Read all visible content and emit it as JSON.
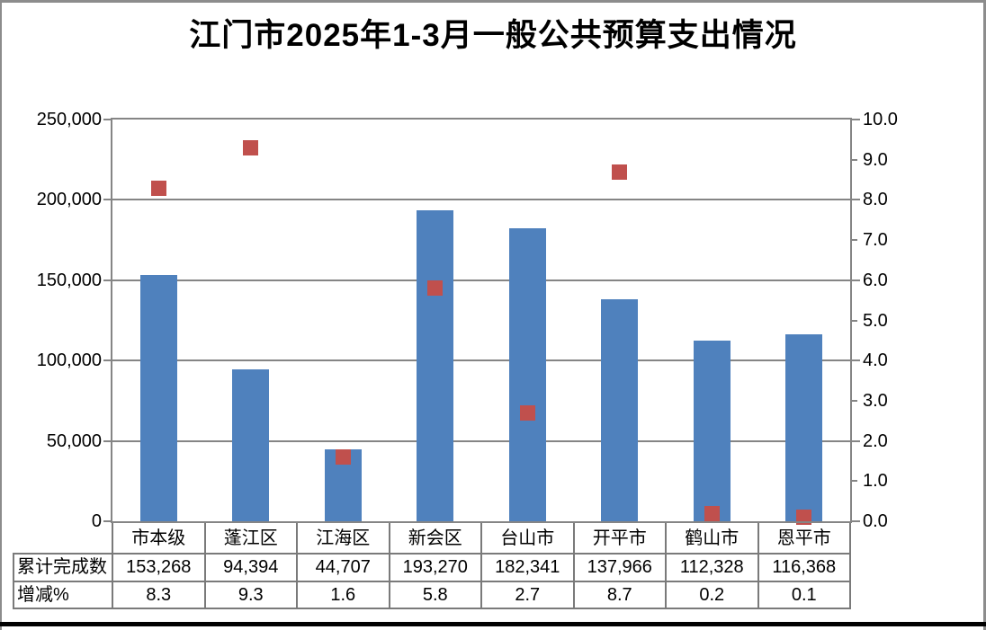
{
  "chart_data": {
    "type": "combo-bar-scatter",
    "title": "江门市2025年1-3月一般公共预算支出情况",
    "categories": [
      "市本级",
      "蓬江区",
      "江海区",
      "新会区",
      "台山市",
      "开平市",
      "鹤山市",
      "恩平市"
    ],
    "series": [
      {
        "name": "累计完成数",
        "type": "bar",
        "axis": "left",
        "color": "#4F81BD",
        "values": [
          153268,
          94394,
          44707,
          193270,
          182341,
          137966,
          112328,
          116368
        ],
        "labels": [
          "153,268",
          "94,394",
          "44,707",
          "193,270",
          "182,341",
          "137,966",
          "112,328",
          "116,368"
        ]
      },
      {
        "name": "增减%",
        "type": "scatter",
        "marker": "square",
        "axis": "right",
        "color": "#C0504D",
        "values": [
          8.3,
          9.3,
          1.6,
          5.8,
          2.7,
          8.7,
          0.2,
          0.1
        ],
        "labels": [
          "8.3",
          "9.3",
          "1.6",
          "5.8",
          "2.7",
          "8.7",
          "0.2",
          "0.1"
        ]
      }
    ],
    "left_axis": {
      "min": 0,
      "max": 250000,
      "tick_labels": [
        "250,000",
        "200,000",
        "150,000",
        "100,000",
        "50,000",
        "0"
      ]
    },
    "right_axis": {
      "min": 0,
      "max": 10,
      "tick_labels": [
        "10.0",
        "9.0",
        "8.0",
        "7.0",
        "6.0",
        "5.0",
        "4.0",
        "3.0",
        "2.0",
        "1.0",
        "0.0"
      ]
    },
    "grid": true,
    "legend": "none",
    "data_table_shown": true
  },
  "colors": {
    "bar": "#4F81BD",
    "marker": "#C0504D",
    "grid": "#858585",
    "table_border": "#7A7A7A",
    "frame": "#8C8C8C",
    "window_edge": "#000000",
    "background": "#FFFFFF",
    "text": "#000000"
  }
}
